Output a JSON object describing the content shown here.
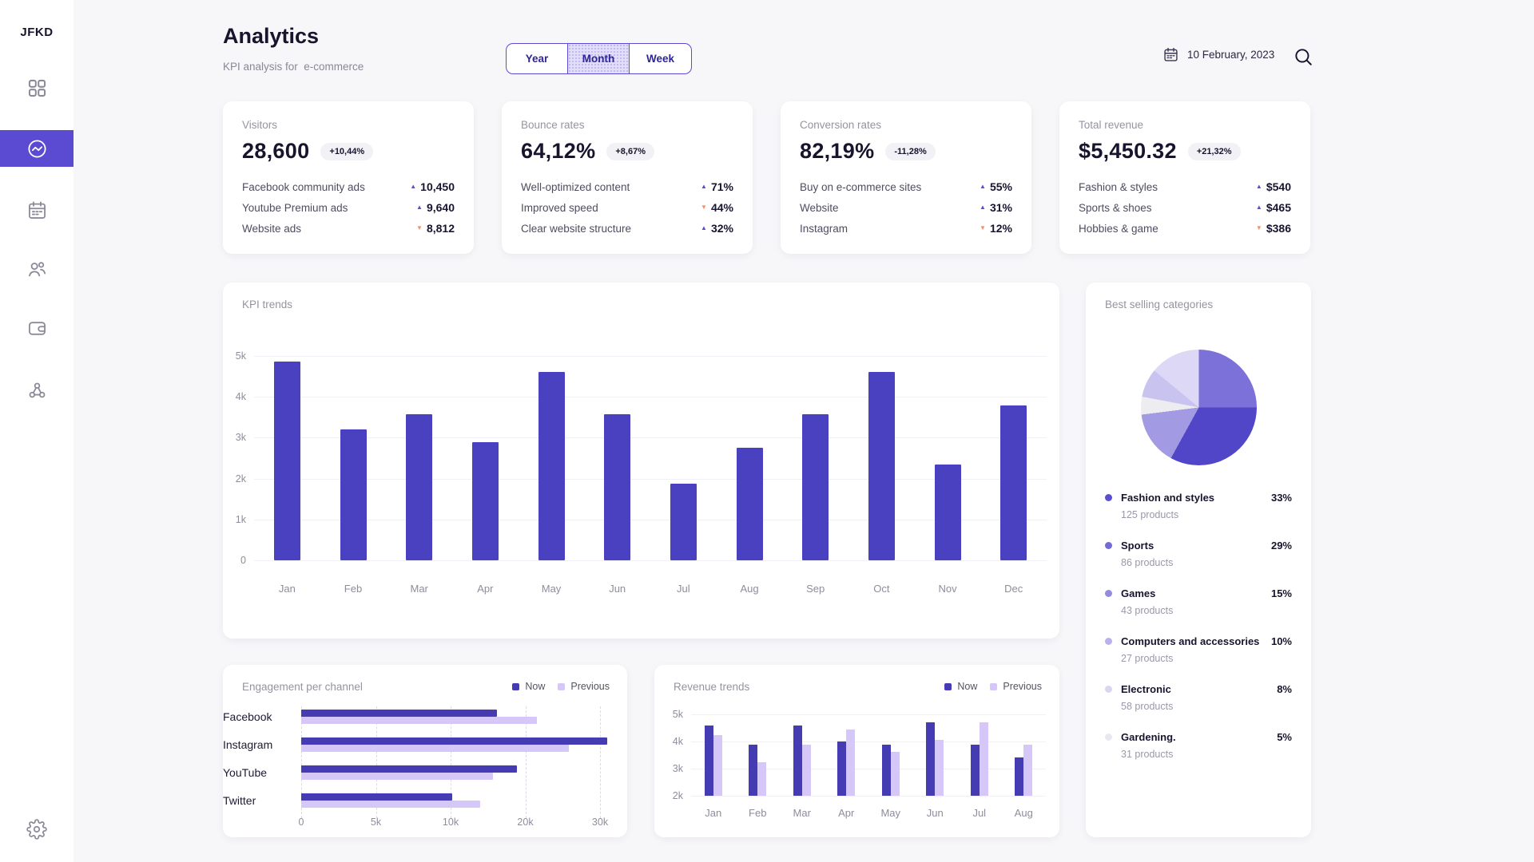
{
  "app": {
    "logo": "JFKD"
  },
  "sidebar": {
    "items": [
      {
        "name": "nav-dashboard",
        "icon": "grid-icon",
        "active": false
      },
      {
        "name": "nav-analytics",
        "icon": "activity-icon",
        "active": true
      },
      {
        "name": "nav-calendar",
        "icon": "calendar-icon",
        "active": false
      },
      {
        "name": "nav-customers",
        "icon": "users-icon",
        "active": false
      },
      {
        "name": "nav-wallet",
        "icon": "wallet-icon",
        "active": false
      },
      {
        "name": "nav-network",
        "icon": "network-icon",
        "active": false
      }
    ],
    "bottom": {
      "name": "nav-settings",
      "icon": "gear-icon"
    }
  },
  "header": {
    "title": "Analytics",
    "subtitle": "KPI analysis for  e-commerce",
    "tabs": [
      {
        "label": "Year",
        "active": false
      },
      {
        "label": "Month",
        "active": true
      },
      {
        "label": "Week",
        "active": false
      }
    ],
    "date": "10 February, 2023",
    "date_icon": "calendar-icon",
    "search_icon": "search-icon"
  },
  "kpi_cards": [
    {
      "title": "Visitors",
      "value": "28,600",
      "badge": "+10,44%",
      "rows": [
        {
          "label": "Facebook community ads",
          "dir": "up",
          "value": "10,450"
        },
        {
          "label": "Youtube Premium ads",
          "dir": "up",
          "value": "9,640"
        },
        {
          "label": "Website ads",
          "dir": "down",
          "value": "8,812"
        }
      ]
    },
    {
      "title": "Bounce rates",
      "value": "64,12%",
      "badge": "+8,67%",
      "rows": [
        {
          "label": "Well-optimized content",
          "dir": "up",
          "value": "71%"
        },
        {
          "label": "Improved speed",
          "dir": "down",
          "value": "44%"
        },
        {
          "label": "Clear website structure",
          "dir": "up",
          "value": "32%"
        }
      ]
    },
    {
      "title": "Conversion rates",
      "value": "82,19%",
      "badge": "-11,28%",
      "rows": [
        {
          "label": "Buy on e-commerce sites",
          "dir": "up",
          "value": "55%"
        },
        {
          "label": "Website",
          "dir": "up",
          "value": "31%"
        },
        {
          "label": "Instagram",
          "dir": "down",
          "value": "12%"
        }
      ]
    },
    {
      "title": "Total revenue",
      "value": "$5,450.32",
      "badge": "+21,32%",
      "rows": [
        {
          "label": "Fashion & styles",
          "dir": "up",
          "value": "$540"
        },
        {
          "label": "Sports & shoes",
          "dir": "up",
          "value": "$465"
        },
        {
          "label": "Hobbies & game",
          "dir": "down",
          "value": "$386"
        }
      ]
    }
  ],
  "chart_data": [
    {
      "type": "bar",
      "title": "KPI trends",
      "categories": [
        "Jan",
        "Feb",
        "Mar",
        "Apr",
        "May",
        "Jun",
        "Jul",
        "Aug",
        "Sep",
        "Oct",
        "Nov",
        "Dec"
      ],
      "values": [
        4870,
        3200,
        3570,
        2900,
        4600,
        3570,
        1870,
        2750,
        3570,
        4600,
        2350,
        3780
      ],
      "ylim": [
        0,
        5000
      ],
      "y_ticks": [
        5000,
        4000,
        3000,
        2000,
        1000,
        0
      ],
      "y_tick_labels": [
        "5k",
        "4k",
        "3k",
        "2k",
        "1k",
        "0"
      ],
      "bar_color": "#4a41c0",
      "grid": true
    },
    {
      "type": "bar",
      "orientation": "horizontal",
      "title": "Engagement per channel",
      "categories": [
        "Facebook",
        "Instagram",
        "YouTube",
        "Twitter"
      ],
      "series": [
        {
          "name": "Now",
          "values": [
            16200,
            31000,
            18900,
            10200
          ],
          "color": "#453bb3"
        },
        {
          "name": "Previous",
          "values": [
            21500,
            25800,
            15700,
            14000
          ],
          "color": "#d5c8f8"
        }
      ],
      "x_ticks": [
        0,
        5000,
        10000,
        20000,
        30000
      ],
      "x_tick_labels": [
        "0",
        "5k",
        "10k",
        "20k",
        "30k"
      ],
      "legend_position": "top-right",
      "grid": true
    },
    {
      "type": "bar",
      "grouping": "grouped",
      "title": "Revenue trends",
      "categories": [
        "Jan",
        "Feb",
        "Mar",
        "Apr",
        "May",
        "Jun",
        "Jul",
        "Aug"
      ],
      "series": [
        {
          "name": "Now",
          "values": [
            4600,
            3880,
            4600,
            4000,
            3880,
            4700,
            3880,
            3420
          ],
          "color": "#453bb3"
        },
        {
          "name": "Previous",
          "values": [
            4250,
            3250,
            3880,
            4450,
            3620,
            4050,
            4700,
            3880
          ],
          "color": "#d5c8f8"
        }
      ],
      "ylim": [
        2000,
        5000
      ],
      "y_ticks": [
        5000,
        4000,
        3000,
        2000
      ],
      "y_tick_labels": [
        "5k",
        "4k",
        "3k",
        "2k"
      ],
      "legend_position": "top-right",
      "grid": true
    },
    {
      "type": "pie",
      "title": "Best selling categories",
      "start_angle_deg": -14.4,
      "slices": [
        {
          "name": "Sports",
          "pct": 29,
          "color": "#7b71d8"
        },
        {
          "name": "Fashion and styles",
          "pct": 33,
          "color": "#5146c8"
        },
        {
          "name": "Games",
          "pct": 15,
          "color": "#a29ae2"
        },
        {
          "name": "Gardening",
          "pct": 5,
          "color": "#ececf1"
        },
        {
          "name": "Electronic",
          "pct": 8,
          "color": "#c9c3f0"
        },
        {
          "name": "Computers and accessories",
          "pct": 10,
          "color": "#dcd8f5"
        }
      ]
    }
  ],
  "best_selling": {
    "title": "Best selling categories",
    "items": [
      {
        "name": "Fashion and styles",
        "pct": "33%",
        "products": "125 products",
        "color": "#5b4fd0"
      },
      {
        "name": "Sports",
        "pct": "29%",
        "products": "86 products",
        "color": "#756bd6"
      },
      {
        "name": "Games",
        "pct": "15%",
        "products": "43 products",
        "color": "#948bdf"
      },
      {
        "name": "Computers and accessories",
        "pct": "10%",
        "products": "27 products",
        "color": "#b9b2ea"
      },
      {
        "name": "Electronic",
        "pct": "8%",
        "products": "58 products",
        "color": "#d9d5f3"
      },
      {
        "name": "Gardening.",
        "pct": "5%",
        "products": "31 products",
        "color": "#e9e8ee"
      }
    ]
  },
  "colors": {
    "accent": "#5b4bd2",
    "kpi_bar": "#4a41c0",
    "now": "#453bb3",
    "previous": "#d5c8f8",
    "up": "#5b4bd2",
    "down": "#f2906b"
  }
}
